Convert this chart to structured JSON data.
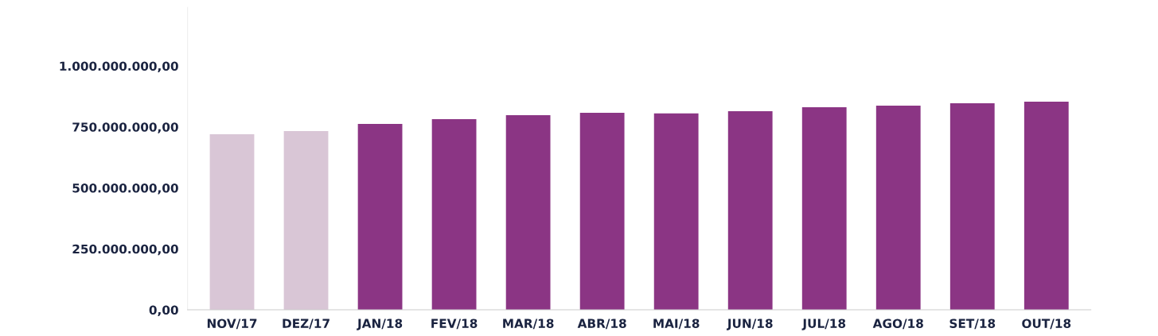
{
  "chart_data": {
    "type": "bar",
    "categories": [
      "NOV/17",
      "DEZ/17",
      "JAN/18",
      "FEV/18",
      "MAR/18",
      "ABR/18",
      "MAI/18",
      "JUN/18",
      "JUL/18",
      "AGO/18",
      "SET/18",
      "OUT/18"
    ],
    "values": [
      720000000,
      733000000,
      762000000,
      782000000,
      798000000,
      808000000,
      805000000,
      814000000,
      831000000,
      837000000,
      847000000,
      853000000
    ],
    "colors": [
      "#d9c6d6",
      "#d9c6d6",
      "#8b3584",
      "#8b3584",
      "#8b3584",
      "#8b3584",
      "#8b3584",
      "#8b3584",
      "#8b3584",
      "#8b3584",
      "#8b3584",
      "#8b3584"
    ],
    "ylim": [
      0,
      1240000000
    ],
    "yticks": [
      {
        "value": 0,
        "label": "0,00"
      },
      {
        "value": 250000000,
        "label": "250.000.000,00"
      },
      {
        "value": 500000000,
        "label": "500.000.000,00"
      },
      {
        "value": 750000000,
        "label": "750.000.000,00"
      },
      {
        "value": 1000000000,
        "label": "1.000.000.000,00"
      }
    ],
    "grid": false,
    "legend": false
  }
}
